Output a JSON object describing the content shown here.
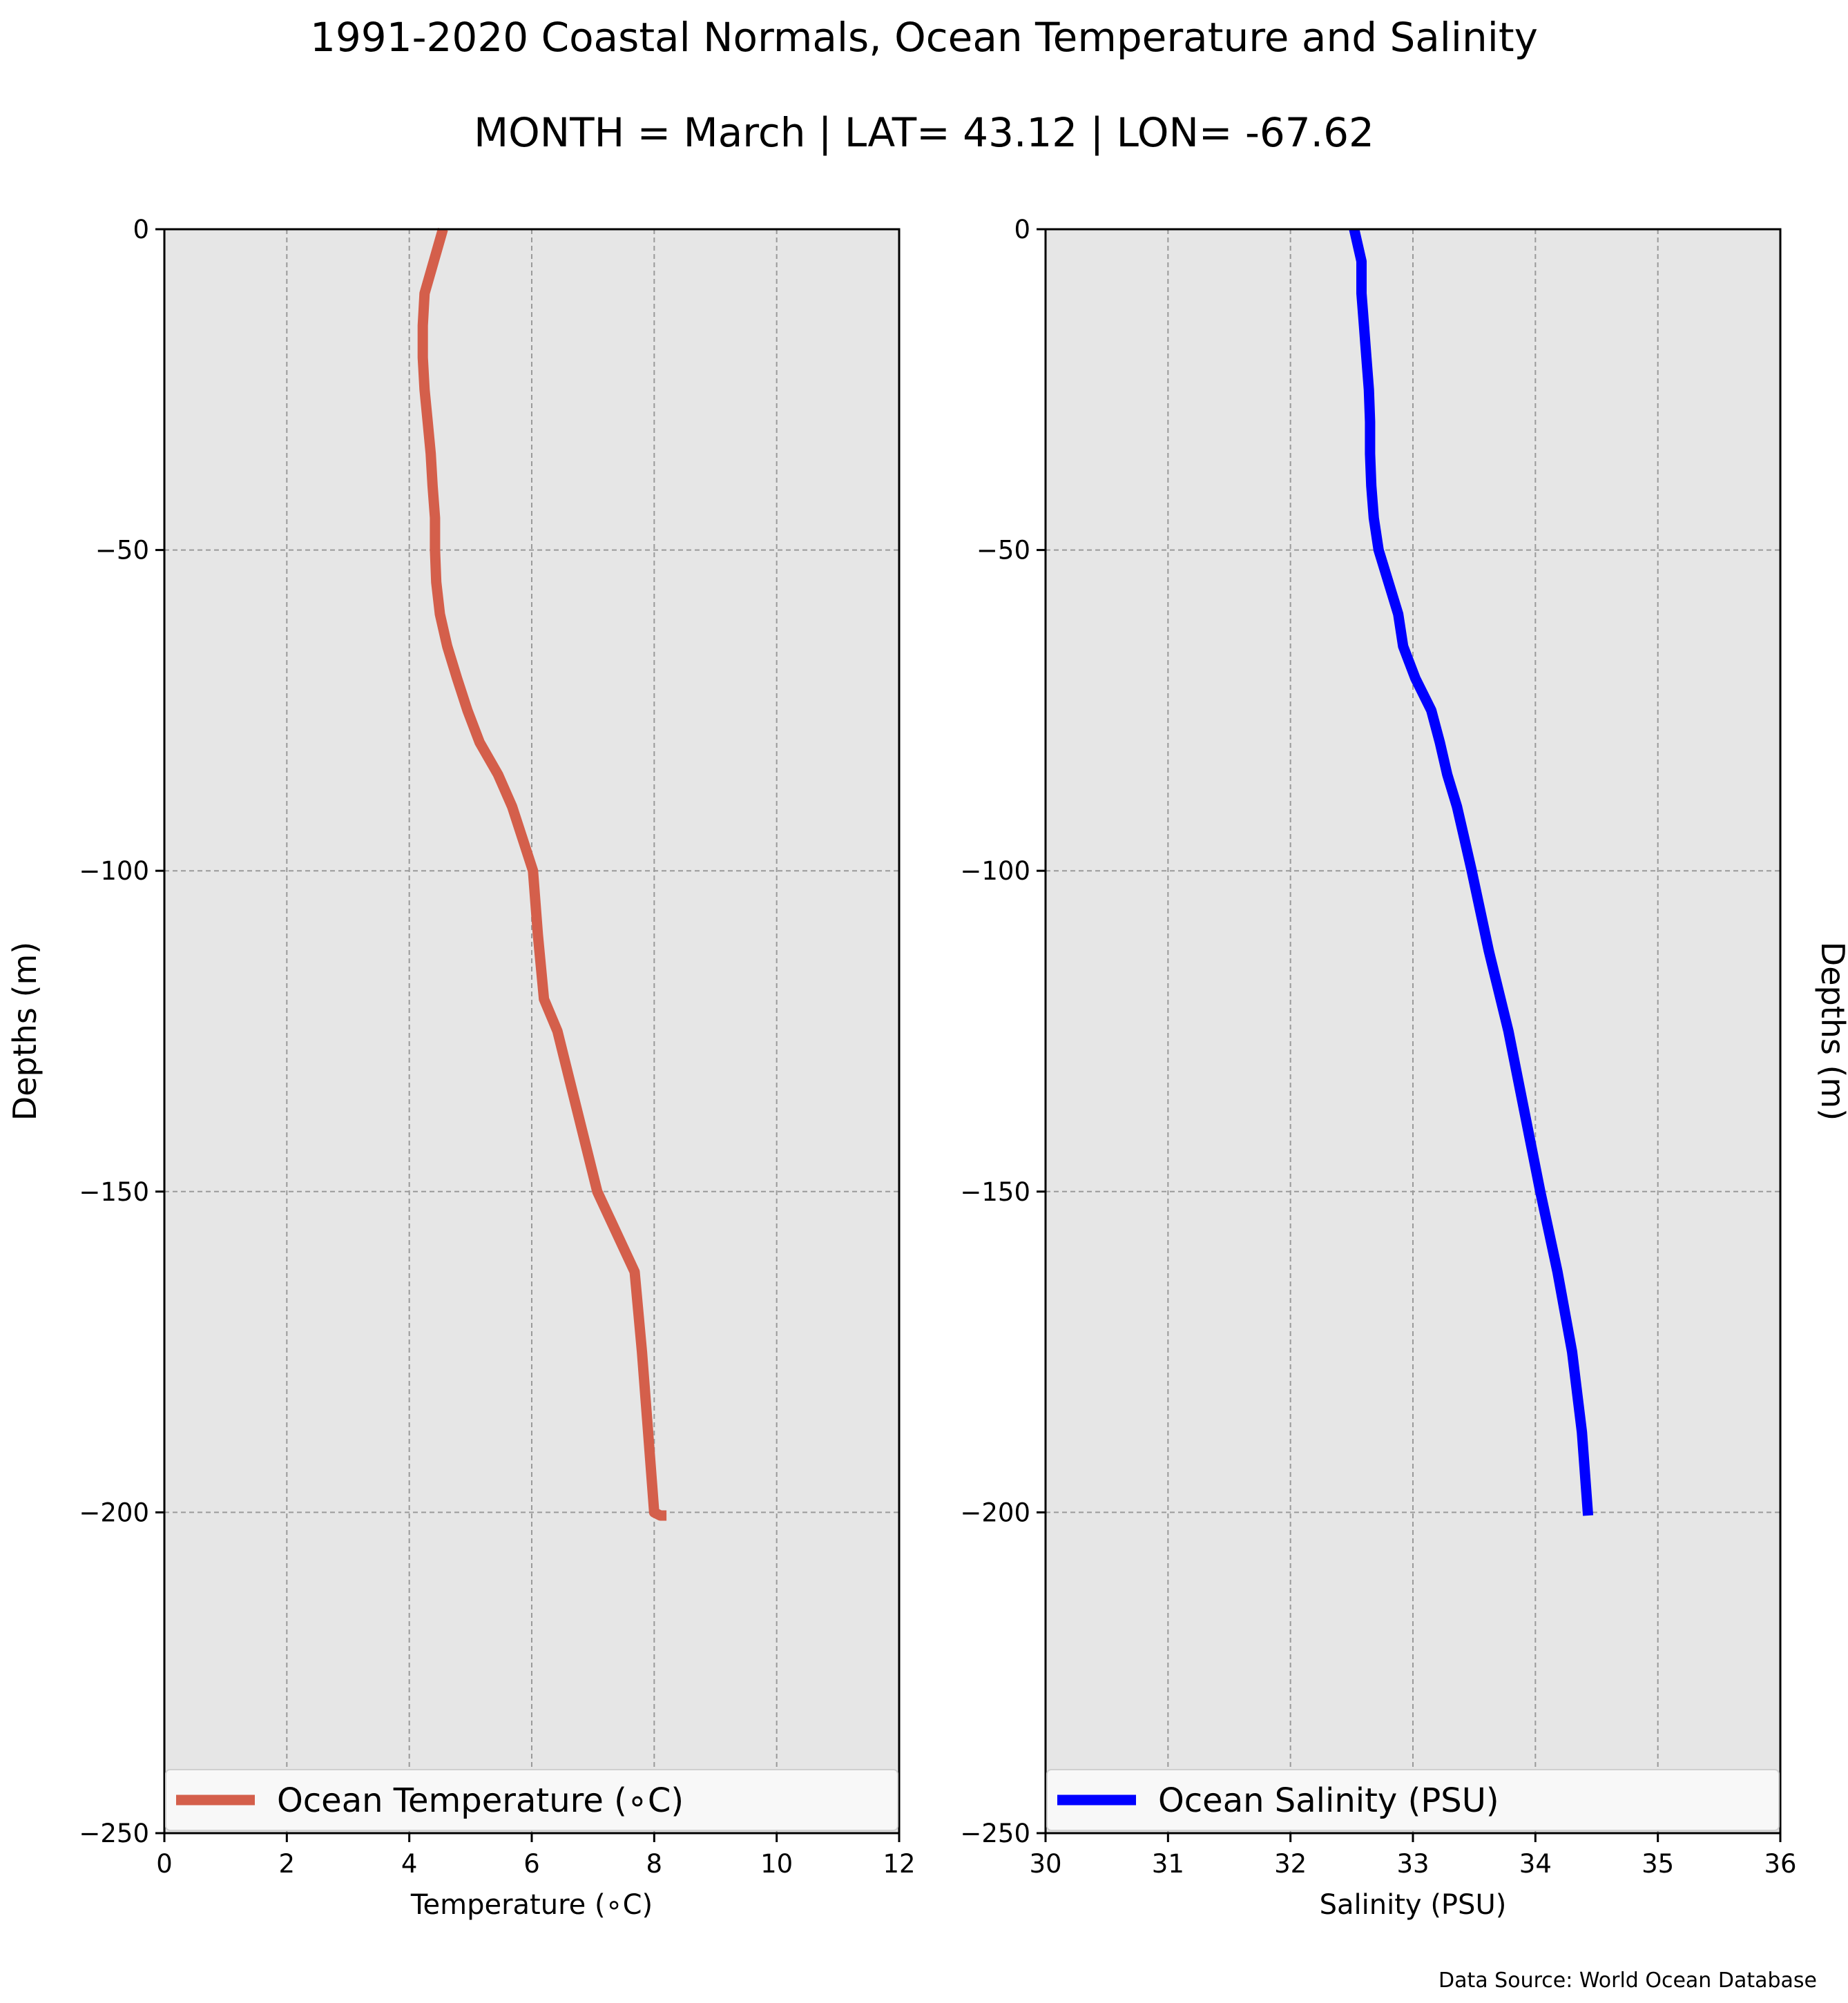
{
  "figure": {
    "title_line1": "1991-2020 Coastal Normals, Ocean Temperature and Salinity",
    "title_line2": "MONTH = March | LAT= 43.12 | LON= -67.62",
    "source": "Data Source: World Ocean Database",
    "background_color": "#ffffff",
    "plot_background_color": "#e6e6e6"
  },
  "chart_data": [
    {
      "type": "line",
      "xlabel": "Temperature ($^\\circ$C)",
      "xlabel_display": "Temperature (∘C)",
      "ylabel": "Depths (m)",
      "ylabel_side": "left",
      "xlim": [
        0,
        12
      ],
      "ylim": [
        -250,
        0
      ],
      "xticks": [
        0,
        2,
        4,
        6,
        8,
        10,
        12
      ],
      "yticks": [
        0,
        -50,
        -100,
        -150,
        -200,
        -250
      ],
      "xtick_labels": [
        "0",
        "2",
        "4",
        "6",
        "8",
        "10",
        "12"
      ],
      "ytick_labels": [
        "0",
        "−50",
        "−100",
        "−150",
        "−200",
        "−250"
      ],
      "grid": true,
      "legend_position": "bottom",
      "series": [
        {
          "name": "Ocean Temperature (∘C)",
          "color": "#d45f4b",
          "x": [
            4.55,
            4.4,
            4.25,
            4.22,
            4.22,
            4.25,
            4.3,
            4.35,
            4.38,
            4.42,
            4.42,
            4.44,
            4.5,
            4.62,
            4.78,
            4.95,
            5.15,
            5.45,
            5.68,
            5.85,
            6.02,
            6.1,
            6.2,
            6.42,
            7.07,
            7.68,
            7.8,
            7.9,
            8.0,
            8.1,
            8.2
          ],
          "y": [
            0,
            -5,
            -10,
            -15,
            -20,
            -25,
            -30,
            -35,
            -40,
            -45,
            -50,
            -55,
            -60,
            -65,
            -70,
            -75,
            -80,
            -85,
            -90,
            -95,
            -100,
            -110,
            -120,
            -125,
            -150,
            -162.5,
            -175,
            -187.5,
            -200,
            -200.5,
            -200.5
          ]
        }
      ]
    },
    {
      "type": "line",
      "xlabel": "Salinity (PSU)",
      "ylabel": "Depths (m)",
      "ylabel_side": "right",
      "xlim": [
        30,
        36
      ],
      "ylim": [
        -250,
        0
      ],
      "xticks": [
        30,
        31,
        32,
        33,
        34,
        35,
        36
      ],
      "yticks": [
        0,
        -50,
        -100,
        -150,
        -200,
        -250
      ],
      "xtick_labels": [
        "30",
        "31",
        "32",
        "33",
        "34",
        "35",
        "36"
      ],
      "ytick_labels": [
        "0",
        "−50",
        "−100",
        "−150",
        "−200",
        "−250"
      ],
      "grid": true,
      "legend_position": "bottom",
      "series": [
        {
          "name": "Ocean Salinity (PSU)",
          "color": "#0000ff",
          "x": [
            32.52,
            32.58,
            32.58,
            32.6,
            32.62,
            32.64,
            32.65,
            32.65,
            32.66,
            32.68,
            32.72,
            32.8,
            32.88,
            32.92,
            33.02,
            33.15,
            33.22,
            33.28,
            33.36,
            33.42,
            33.48,
            33.62,
            33.78,
            34.04,
            34.18,
            34.3,
            34.38,
            34.43
          ],
          "y": [
            0,
            -5,
            -10,
            -15,
            -20,
            -25,
            -30,
            -35,
            -40,
            -45,
            -50,
            -55,
            -60,
            -65,
            -70,
            -75,
            -80,
            -85,
            -90,
            -95,
            -100,
            -112.5,
            -125,
            -150,
            -162.5,
            -175,
            -187.5,
            -200.5
          ]
        }
      ]
    }
  ]
}
